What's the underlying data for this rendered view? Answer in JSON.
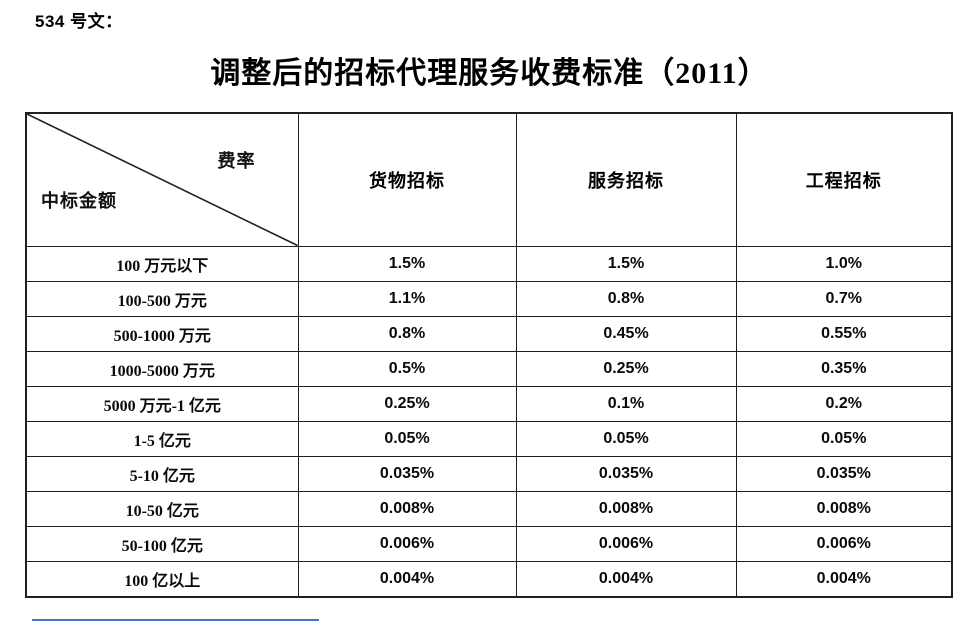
{
  "page": {
    "doc_label": "534 号文：",
    "title": "调整后的招标代理服务收费标准（2011）"
  },
  "table": {
    "corner": {
      "top_right": "费率",
      "bottom_left": "中标金额"
    },
    "columns": [
      "货物招标",
      "服务招标",
      "工程招标"
    ],
    "rows": [
      {
        "label": "100 万元以下",
        "values": [
          "1.5%",
          "1.5%",
          "1.0%"
        ]
      },
      {
        "label": "100-500 万元",
        "values": [
          "1.1%",
          "0.8%",
          "0.7%"
        ]
      },
      {
        "label": "500-1000 万元",
        "values": [
          "0.8%",
          "0.45%",
          "0.55%"
        ]
      },
      {
        "label": "1000-5000 万元",
        "values": [
          "0.5%",
          "0.25%",
          "0.35%"
        ]
      },
      {
        "label": "5000 万元-1 亿元",
        "values": [
          "0.25%",
          "0.1%",
          "0.2%"
        ]
      },
      {
        "label": "1-5 亿元",
        "values": [
          "0.05%",
          "0.05%",
          "0.05%"
        ]
      },
      {
        "label": "5-10 亿元",
        "values": [
          "0.035%",
          "0.035%",
          "0.035%"
        ]
      },
      {
        "label": "10-50 亿元",
        "values": [
          "0.008%",
          "0.008%",
          "0.008%"
        ]
      },
      {
        "label": "50-100 亿元",
        "values": [
          "0.006%",
          "0.006%",
          "0.006%"
        ]
      },
      {
        "label": "100 亿以上",
        "values": [
          "0.004%",
          "0.004%",
          "0.004%"
        ]
      }
    ]
  },
  "colors": {
    "border": "#1f1f1f",
    "text": "#111111",
    "accent_line": "#4472c4"
  }
}
